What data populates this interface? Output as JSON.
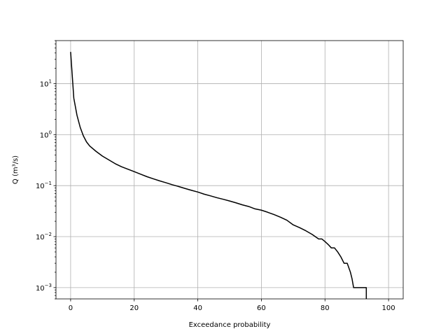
{
  "chart_data": {
    "type": "line",
    "title": "",
    "xlabel": "Exceedance probability",
    "ylabel": "Q (m³/s)",
    "yscale": "log",
    "grid": true,
    "xlim": [
      -4.6,
      104.6
    ],
    "ylim": [
      0.0006,
      70
    ],
    "x_ticks": [
      0,
      20,
      40,
      60,
      80,
      100
    ],
    "x_tick_labels": [
      "0",
      "20",
      "40",
      "60",
      "80",
      "100"
    ],
    "y_ticks": [
      0.001,
      0.01,
      0.1,
      1,
      10
    ],
    "y_tick_labels": [
      {
        "base": "10",
        "exp": "−3"
      },
      {
        "base": "10",
        "exp": "−2"
      },
      {
        "base": "10",
        "exp": "−1"
      },
      {
        "base": "10",
        "exp": "0"
      },
      {
        "base": "10",
        "exp": "1"
      }
    ],
    "series": [
      {
        "color": "#000000",
        "x": [
          0,
          1,
          2,
          3,
          4,
          5,
          6,
          8,
          10,
          12,
          14,
          16,
          18,
          20,
          22,
          24,
          26,
          28,
          30,
          32,
          34,
          36,
          38,
          40,
          42,
          44,
          46,
          48,
          50,
          52,
          54,
          56,
          58,
          60,
          62,
          64,
          66,
          68,
          70,
          72,
          74,
          76,
          78,
          79,
          80,
          81,
          82,
          83,
          84,
          85,
          86,
          87,
          88,
          88.5,
          89,
          90,
          91,
          92,
          93,
          93
        ],
        "y": [
          42,
          5.2,
          2.4,
          1.4,
          0.95,
          0.72,
          0.6,
          0.47,
          0.38,
          0.32,
          0.27,
          0.235,
          0.21,
          0.188,
          0.168,
          0.15,
          0.136,
          0.124,
          0.114,
          0.104,
          0.096,
          0.088,
          0.081,
          0.075,
          0.068,
          0.063,
          0.058,
          0.054,
          0.05,
          0.046,
          0.042,
          0.039,
          0.035,
          0.033,
          0.03,
          0.027,
          0.024,
          0.021,
          0.017,
          0.015,
          0.013,
          0.011,
          0.009,
          0.009,
          0.008,
          0.007,
          0.006,
          0.006,
          0.005,
          0.004,
          0.003,
          0.003,
          0.002,
          0.0015,
          0.001,
          0.001,
          0.001,
          0.001,
          0.001,
          0.0006
        ]
      }
    ]
  }
}
